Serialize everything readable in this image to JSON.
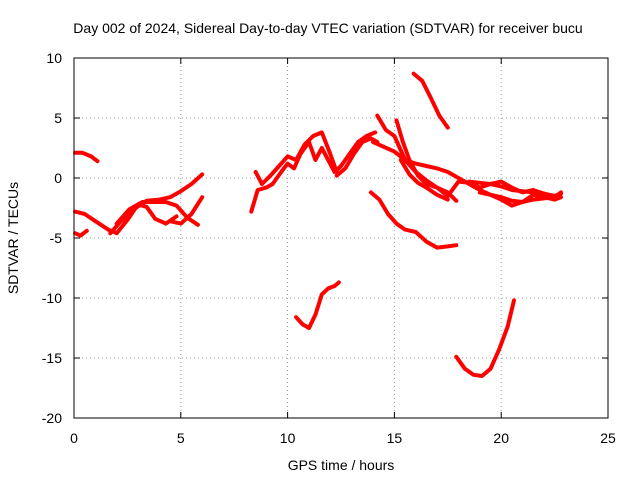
{
  "chart_data": {
    "type": "line",
    "title": "Day 002 of 2024, Sidereal Day-to-day VTEC variation (SDTVAR) for receiver bucu",
    "xlabel": "GPS time / hours",
    "ylabel": "SDTVAR / TECUs",
    "xlim": [
      0,
      25
    ],
    "ylim": [
      -20,
      10
    ],
    "xticks": [
      0,
      5,
      10,
      15,
      20,
      25
    ],
    "yticks": [
      -20,
      -15,
      -10,
      -5,
      0,
      5,
      10
    ],
    "xtick_labels": [
      "0",
      "5",
      "10",
      "15",
      "20",
      "25"
    ],
    "ytick_labels": [
      "-20",
      "-15",
      "-10",
      "-5",
      "0",
      "5",
      "10"
    ],
    "grid": true,
    "series_color": "#ff0000",
    "series": [
      {
        "name": "s1",
        "x": [
          0.05,
          0.4,
          0.8,
          1.1
        ],
        "y": [
          2.1,
          2.1,
          1.8,
          1.4
        ]
      },
      {
        "name": "s2",
        "x": [
          0.05,
          0.5,
          1.0,
          1.6,
          2.0,
          2.5,
          3.0,
          3.4,
          3.8,
          4.3,
          4.8
        ],
        "y": [
          -2.8,
          -3.0,
          -3.6,
          -4.3,
          -4.6,
          -3.5,
          -2.2,
          -2.4,
          -3.4,
          -3.8,
          -3.2
        ]
      },
      {
        "name": "s3",
        "x": [
          0.05,
          0.3,
          0.6
        ],
        "y": [
          -4.6,
          -4.8,
          -4.4
        ]
      },
      {
        "name": "s4",
        "x": [
          1.7,
          2.2,
          2.8,
          3.4,
          4.0,
          4.5,
          5.0,
          5.5,
          6.0
        ],
        "y": [
          -4.6,
          -3.6,
          -2.6,
          -1.9,
          -1.8,
          -1.6,
          -1.1,
          -0.5,
          0.3
        ]
      },
      {
        "name": "s5",
        "x": [
          2.0,
          2.6,
          3.2,
          3.8,
          4.3,
          4.8,
          5.3,
          5.8
        ],
        "y": [
          -3.8,
          -2.6,
          -2.0,
          -2.0,
          -2.0,
          -2.3,
          -3.3,
          -3.9
        ]
      },
      {
        "name": "s6",
        "x": [
          4.5,
          5.0,
          5.5,
          6.0
        ],
        "y": [
          -3.6,
          -3.8,
          -3.0,
          -1.6
        ]
      },
      {
        "name": "s7",
        "x": [
          8.3,
          8.6,
          9.0,
          9.3,
          9.7,
          10.0,
          10.3,
          10.6,
          11.0,
          11.3,
          11.6,
          11.9,
          12.2,
          12.5
        ],
        "y": [
          -2.8,
          -1.0,
          -0.8,
          -0.5,
          0.5,
          1.2,
          0.8,
          2.0,
          3.0,
          1.5,
          2.5,
          1.5,
          0.5,
          1.0
        ]
      },
      {
        "name": "s8",
        "x": [
          8.5,
          8.8,
          9.2,
          9.6,
          10.0,
          10.4,
          10.8,
          11.2,
          11.6,
          12.0,
          12.3
        ],
        "y": [
          0.5,
          -0.5,
          0.2,
          1.0,
          1.8,
          1.5,
          2.8,
          3.5,
          3.8,
          2.0,
          0.5
        ]
      },
      {
        "name": "s9",
        "x": [
          12.3,
          12.7,
          13.1,
          13.5,
          13.9,
          14.2
        ],
        "y": [
          0.2,
          0.8,
          2.0,
          3.0,
          3.3,
          3.0
        ]
      },
      {
        "name": "s10",
        "x": [
          12.5,
          12.9,
          13.3,
          13.7,
          14.1
        ],
        "y": [
          1.0,
          2.0,
          3.0,
          3.5,
          3.8
        ]
      },
      {
        "name": "s11",
        "x": [
          14.2,
          14.6,
          15.0,
          15.5,
          16.0,
          16.5,
          17.0,
          17.5,
          18.0,
          18.5,
          19.0,
          19.5,
          20.0,
          20.5,
          21.0,
          21.5,
          22.0,
          22.5
        ],
        "y": [
          5.2,
          4.0,
          3.5,
          1.5,
          0.5,
          -0.2,
          -0.8,
          -1.5,
          -0.3,
          -0.4,
          -0.8,
          -0.5,
          -0.3,
          -0.8,
          -1.2,
          -1.0,
          -1.3,
          -1.6
        ]
      },
      {
        "name": "s12",
        "x": [
          14.0,
          14.5,
          15.0,
          15.5,
          16.0,
          16.5,
          17.0,
          17.5,
          18.0,
          18.5,
          19.0,
          19.5,
          20.0,
          20.5,
          21.0,
          21.5,
          22.0,
          22.5,
          22.8
        ],
        "y": [
          3.0,
          2.6,
          2.2,
          1.5,
          1.2,
          1.0,
          0.8,
          0.5,
          0.0,
          -0.5,
          -1.0,
          -1.4,
          -1.8,
          -2.3,
          -2.0,
          -1.4,
          -1.6,
          -1.8,
          -1.6
        ]
      },
      {
        "name": "s13",
        "x": [
          15.1,
          15.4,
          15.7,
          16.1,
          16.5,
          17.0,
          17.5,
          17.9
        ],
        "y": [
          4.8,
          3.0,
          1.5,
          0.2,
          -0.5,
          -0.8,
          -1.2,
          -1.9
        ]
      },
      {
        "name": "s14",
        "x": [
          15.3,
          15.7,
          16.1,
          16.5,
          17.0,
          17.5
        ],
        "y": [
          1.5,
          0.3,
          -0.4,
          -0.8,
          -1.4,
          -1.8
        ]
      },
      {
        "name": "s15",
        "x": [
          15.9,
          16.3,
          16.7,
          17.1,
          17.5
        ],
        "y": [
          8.7,
          8.1,
          6.7,
          5.2,
          4.2
        ]
      },
      {
        "name": "s16",
        "x": [
          13.9,
          14.3,
          14.7,
          15.1,
          15.5,
          16.0,
          16.5,
          17.0,
          17.5,
          17.9
        ],
        "y": [
          -1.2,
          -1.8,
          -3.0,
          -3.8,
          -4.3,
          -4.5,
          -5.3,
          -5.8,
          -5.7,
          -5.6
        ]
      },
      {
        "name": "s17",
        "x": [
          10.4,
          10.7,
          11.0,
          11.3,
          11.6,
          11.9,
          12.2,
          12.4
        ],
        "y": [
          -11.6,
          -12.2,
          -12.5,
          -11.4,
          -9.7,
          -9.2,
          -9.0,
          -8.7
        ]
      },
      {
        "name": "s18",
        "x": [
          17.9,
          18.3,
          18.7,
          19.1,
          19.5,
          19.9,
          20.3,
          20.6
        ],
        "y": [
          -14.9,
          -15.9,
          -16.4,
          -16.5,
          -15.9,
          -14.3,
          -12.4,
          -10.2
        ]
      },
      {
        "name": "s19",
        "x": [
          18.5,
          19.0,
          19.5,
          20.0,
          20.5,
          21.0,
          21.5,
          22.0,
          22.5,
          22.8
        ],
        "y": [
          -0.3,
          -0.4,
          -0.5,
          -0.7,
          -1.0,
          -1.1,
          -1.2,
          -1.3,
          -1.5,
          -1.3
        ]
      },
      {
        "name": "s20",
        "x": [
          19.0,
          19.5,
          20.0,
          20.5,
          21.0,
          21.5,
          22.0,
          22.5,
          22.8
        ],
        "y": [
          -1.2,
          -1.4,
          -1.6,
          -1.9,
          -2.0,
          -1.8,
          -1.7,
          -1.6,
          -1.2
        ]
      }
    ]
  }
}
